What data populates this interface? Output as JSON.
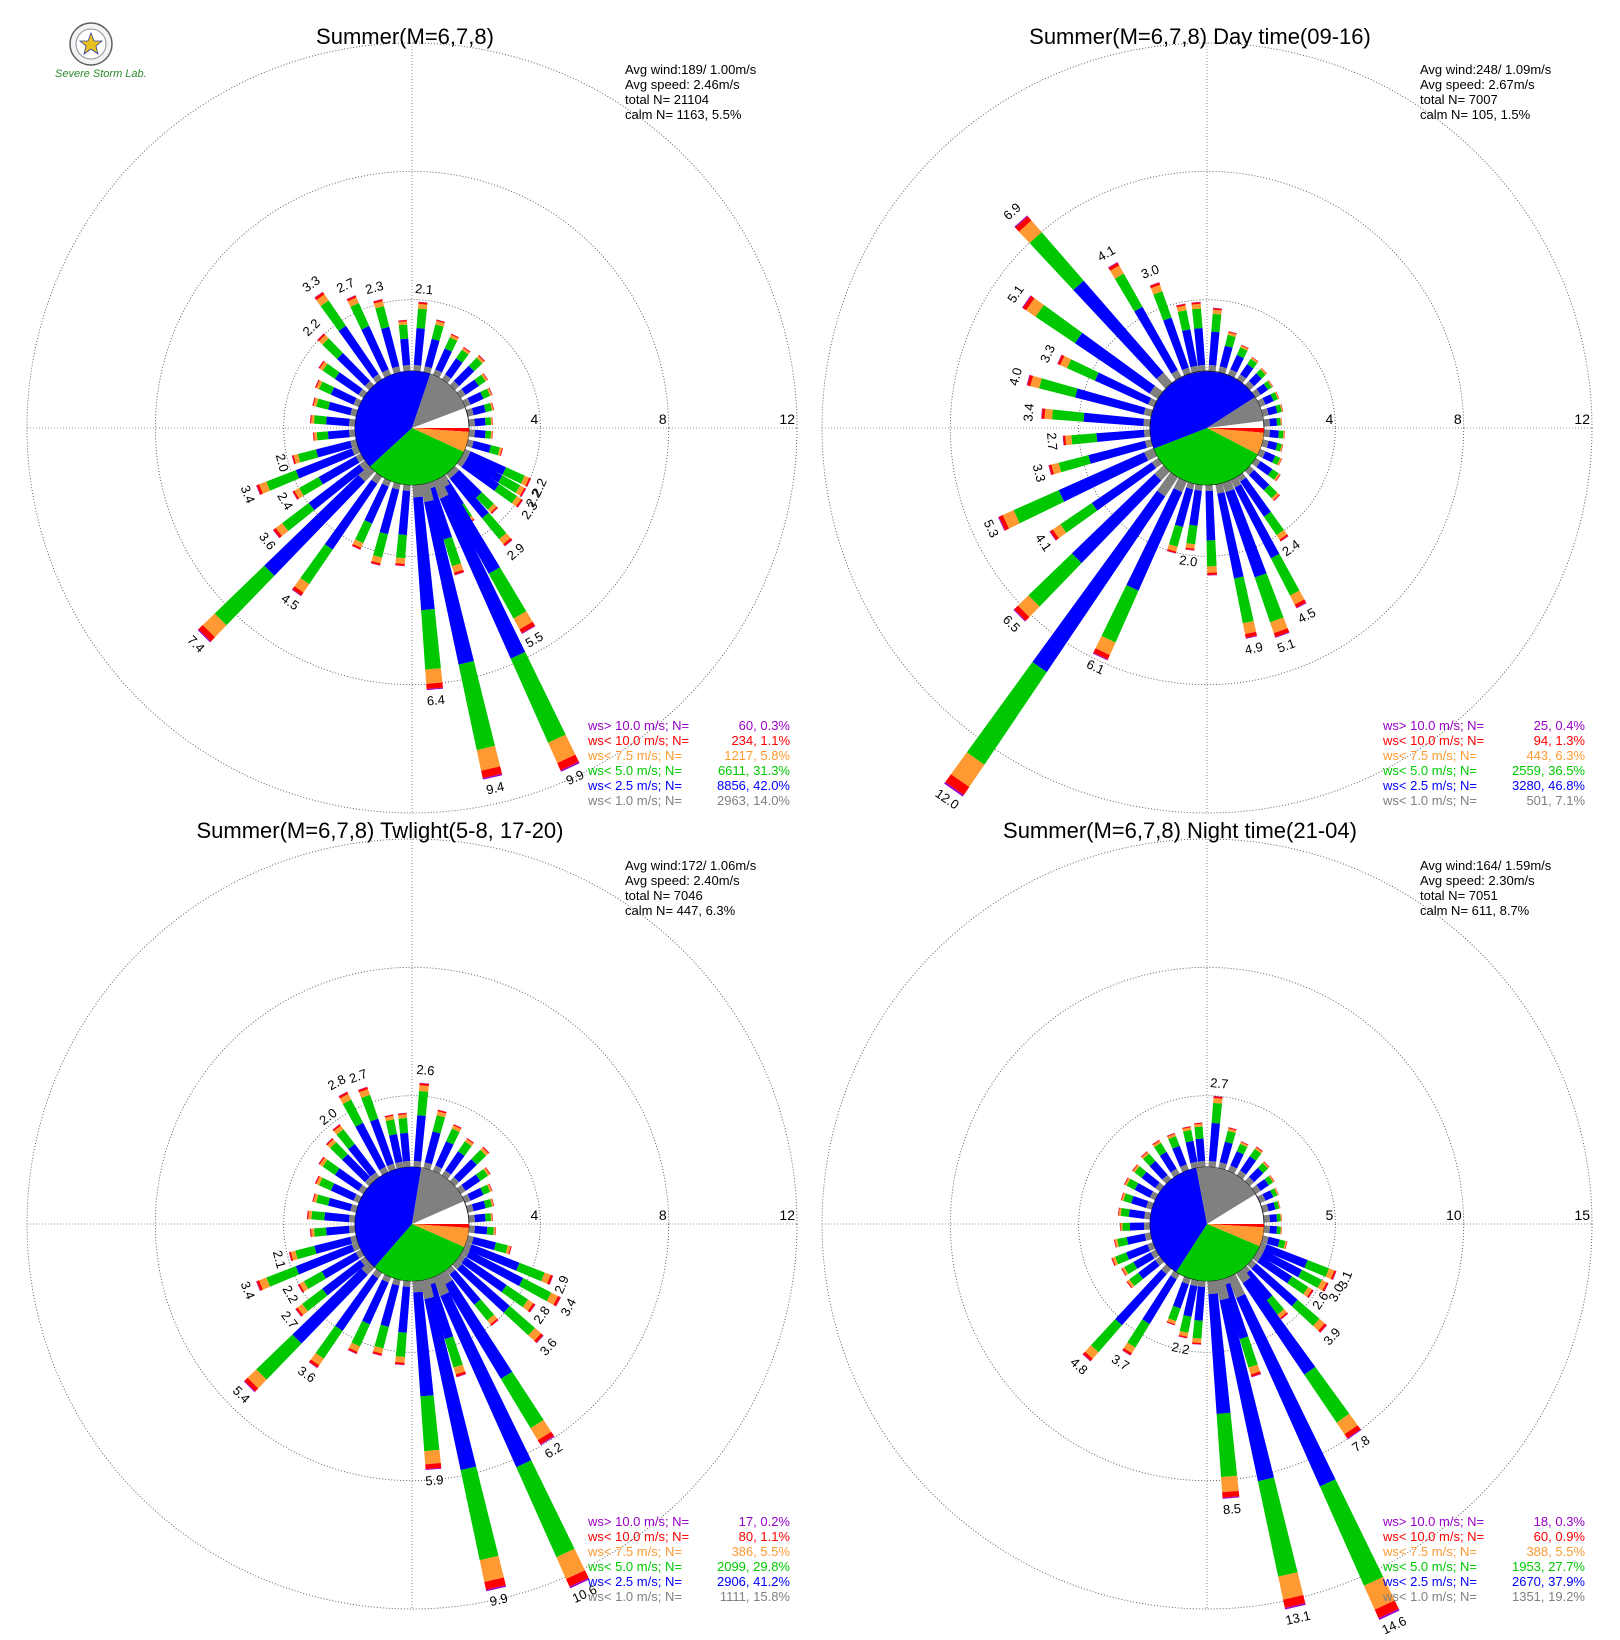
{
  "logo": {
    "caption": "Severe Storm Lab.",
    "badge_icon": "seal-emblem-icon"
  },
  "colors": {
    "gt10": "#9a00c8",
    "lt10": "#ff0000",
    "lt75": "#ff9a32",
    "lt5": "#00c800",
    "lt25": "#0000ff",
    "lt1": "#808080"
  },
  "chart_data": [
    {
      "type": "windrose",
      "title": "Summer(M=6,7,8)",
      "rings": [
        4,
        8,
        12
      ],
      "ring_labels": [
        "4",
        "8",
        "12"
      ],
      "stats": [
        "Avg wind:189/ 1.00m/s",
        "Avg speed: 2.46m/s",
        "total N=       21104",
        "calm N=   1163,   5.5%"
      ],
      "legend": [
        {
          "label": "ws> 10.0 m/s; N=",
          "value": "60,  0.3%",
          "color": "#9a00c8"
        },
        {
          "label": "ws< 10.0 m/s; N=",
          "value": "234,  1.1%",
          "color": "#ff0000"
        },
        {
          "label": "ws<  7.5 m/s; N=",
          "value": "1217,  5.8%",
          "color": "#ff9a32"
        },
        {
          "label": "ws<  5.0 m/s; N=",
          "value": "6611, 31.3%",
          "color": "#00c800"
        },
        {
          "label": "ws<  2.5 m/s; N=",
          "value": "8856, 42.0%",
          "color": "#0000ff"
        },
        {
          "label": "ws<  1.0 m/s; N=",
          "value": "2963, 14.0%",
          "color": "#808080"
        }
      ],
      "pie": [
        {
          "color": "#ff0000",
          "pct": 1.1
        },
        {
          "color": "#ff9a32",
          "pct": 5.8
        },
        {
          "color": "#00c800",
          "pct": 31.3
        },
        {
          "color": "#0000ff",
          "pct": 42.0
        },
        {
          "color": "#808080",
          "pct": 14.0
        }
      ],
      "bars": [
        {
          "dir": 5,
          "total": 2.1,
          "label": "2.1"
        },
        {
          "dir": 15,
          "total": 1.6
        },
        {
          "dir": 25,
          "total": 1.3
        },
        {
          "dir": 35,
          "total": 1.1
        },
        {
          "dir": 45,
          "total": 1.2
        },
        {
          "dir": 55,
          "total": 0.9
        },
        {
          "dir": 65,
          "total": 0.8
        },
        {
          "dir": 75,
          "total": 0.7
        },
        {
          "dir": 85,
          "total": 0.6
        },
        {
          "dir": 95,
          "total": 0.6
        },
        {
          "dir": 105,
          "total": 1.0
        },
        {
          "dir": 115,
          "total": 2.2,
          "label": "2.2"
        },
        {
          "dir": 120,
          "total": 2.2,
          "label": "2.2"
        },
        {
          "dir": 125,
          "total": 2.3,
          "label": "2.3"
        },
        {
          "dir": 135,
          "total": 1.8
        },
        {
          "dir": 140,
          "total": 2.9,
          "label": "2.9"
        },
        {
          "dir": 148,
          "total": 1.6
        },
        {
          "dir": 150,
          "total": 5.5,
          "label": "5.5"
        },
        {
          "dir": 155,
          "total": 9.9,
          "label": "9.9"
        },
        {
          "dir": 162,
          "total": 3.0
        },
        {
          "dir": 167,
          "total": 9.4,
          "label": "9.4"
        },
        {
          "dir": 175,
          "total": 6.4,
          "label": "6.4"
        },
        {
          "dir": 185,
          "total": 2.5
        },
        {
          "dir": 195,
          "total": 2.6
        },
        {
          "dir": 205,
          "total": 2.3
        },
        {
          "dir": 215,
          "total": 4.5,
          "label": "4.5"
        },
        {
          "dir": 225,
          "total": 7.4,
          "label": "7.4"
        },
        {
          "dir": 232,
          "total": 3.6,
          "label": "3.6"
        },
        {
          "dir": 240,
          "total": 2.4,
          "label": "2.4"
        },
        {
          "dir": 248,
          "total": 3.4,
          "label": "3.4"
        },
        {
          "dir": 255,
          "total": 2.0,
          "label": "2.0"
        },
        {
          "dir": 265,
          "total": 1.2
        },
        {
          "dir": 275,
          "total": 1.3
        },
        {
          "dir": 285,
          "total": 1.3
        },
        {
          "dir": 295,
          "total": 1.4
        },
        {
          "dir": 305,
          "total": 1.6
        },
        {
          "dir": 315,
          "total": 2.2,
          "label": "2.2"
        },
        {
          "dir": 325,
          "total": 3.3,
          "label": "3.3"
        },
        {
          "dir": 335,
          "total": 2.7,
          "label": "2.7"
        },
        {
          "dir": 345,
          "total": 2.3,
          "label": "2.3"
        },
        {
          "dir": 355,
          "total": 1.5
        }
      ]
    },
    {
      "type": "windrose",
      "title": "Summer(M=6,7,8) Day time(09-16)",
      "rings": [
        4,
        8,
        12
      ],
      "ring_labels": [
        "4",
        "8",
        "12"
      ],
      "stats": [
        "Avg wind:248/ 1.09m/s",
        "Avg speed: 2.67m/s",
        "total N=       7007",
        "calm N=    105,   1.5%"
      ],
      "legend": [
        {
          "label": "ws> 10.0 m/s; N=",
          "value": "25,  0.4%",
          "color": "#9a00c8"
        },
        {
          "label": "ws< 10.0 m/s; N=",
          "value": "94,  1.3%",
          "color": "#ff0000"
        },
        {
          "label": "ws<  7.5 m/s; N=",
          "value": "443,  6.3%",
          "color": "#ff9a32"
        },
        {
          "label": "ws<  5.0 m/s; N=",
          "value": "2559, 36.5%",
          "color": "#00c800"
        },
        {
          "label": "ws<  2.5 m/s; N=",
          "value": "3280, 46.8%",
          "color": "#0000ff"
        },
        {
          "label": "ws<  1.0 m/s; N=",
          "value": "501,  7.1%",
          "color": "#808080"
        }
      ],
      "pie": [
        {
          "color": "#ff0000",
          "pct": 1.3
        },
        {
          "color": "#ff9a32",
          "pct": 6.3
        },
        {
          "color": "#00c800",
          "pct": 36.5
        },
        {
          "color": "#0000ff",
          "pct": 46.8
        },
        {
          "color": "#808080",
          "pct": 7.1
        }
      ],
      "bars": [
        {
          "dir": 5,
          "total": 1.9
        },
        {
          "dir": 15,
          "total": 1.2
        },
        {
          "dir": 25,
          "total": 0.9
        },
        {
          "dir": 35,
          "total": 0.7
        },
        {
          "dir": 45,
          "total": 0.6
        },
        {
          "dir": 55,
          "total": 0.5
        },
        {
          "dir": 65,
          "total": 0.5
        },
        {
          "dir": 75,
          "total": 0.5
        },
        {
          "dir": 85,
          "total": 0.4
        },
        {
          "dir": 95,
          "total": 0.5
        },
        {
          "dir": 105,
          "total": 0.5
        },
        {
          "dir": 115,
          "total": 0.6
        },
        {
          "dir": 125,
          "total": 0.8
        },
        {
          "dir": 135,
          "total": 1.2
        },
        {
          "dir": 145,
          "total": 2.4,
          "label": "2.4"
        },
        {
          "dir": 152,
          "total": 4.5,
          "label": "4.5"
        },
        {
          "dir": 160,
          "total": 5.1,
          "label": "5.1"
        },
        {
          "dir": 168,
          "total": 4.9,
          "label": "4.9"
        },
        {
          "dir": 178,
          "total": 2.8
        },
        {
          "dir": 188,
          "total": 2.0,
          "label": "2.0"
        },
        {
          "dir": 196,
          "total": 2.2
        },
        {
          "dir": 205,
          "total": 6.1,
          "label": "6.1"
        },
        {
          "dir": 215,
          "total": 12.0,
          "label": "12.0"
        },
        {
          "dir": 225,
          "total": 6.5,
          "label": "6.5"
        },
        {
          "dir": 235,
          "total": 4.1,
          "label": "4.1"
        },
        {
          "dir": 245,
          "total": 5.3,
          "label": "5.3"
        },
        {
          "dir": 255,
          "total": 3.3,
          "label": "3.3"
        },
        {
          "dir": 265,
          "total": 2.7,
          "label": "2.7"
        },
        {
          "dir": 275,
          "total": 3.4,
          "label": "3.4"
        },
        {
          "dir": 285,
          "total": 4.0,
          "label": "4.0"
        },
        {
          "dir": 295,
          "total": 3.3,
          "label": "3.3"
        },
        {
          "dir": 305,
          "total": 5.1,
          "label": "5.1"
        },
        {
          "dir": 318,
          "total": 6.9,
          "label": "6.9"
        },
        {
          "dir": 330,
          "total": 4.1,
          "label": "4.1"
        },
        {
          "dir": 340,
          "total": 3.0,
          "label": "3.0"
        },
        {
          "dir": 348,
          "total": 2.1
        },
        {
          "dir": 355,
          "total": 2.1
        }
      ]
    },
    {
      "type": "windrose",
      "title": "Summer(M=6,7,8) Twlight(5-8, 17-20)",
      "rings": [
        4,
        8,
        12
      ],
      "ring_labels": [
        "4",
        "8",
        "12"
      ],
      "stats": [
        "Avg wind:172/ 1.06m/s",
        "Avg speed: 2.40m/s",
        "total N=       7046",
        "calm N=    447,   6.3%"
      ],
      "legend": [
        {
          "label": "ws> 10.0 m/s; N=",
          "value": "17,  0.2%",
          "color": "#9a00c8"
        },
        {
          "label": "ws< 10.0 m/s; N=",
          "value": "80,  1.1%",
          "color": "#ff0000"
        },
        {
          "label": "ws<  7.5 m/s; N=",
          "value": "386,  5.5%",
          "color": "#ff9a32"
        },
        {
          "label": "ws<  5.0 m/s; N=",
          "value": "2099, 29.8%",
          "color": "#00c800"
        },
        {
          "label": "ws<  2.5 m/s; N=",
          "value": "2906, 41.2%",
          "color": "#0000ff"
        },
        {
          "label": "ws<  1.0 m/s; N=",
          "value": "1111, 15.8%",
          "color": "#808080"
        }
      ],
      "pie": [
        {
          "color": "#ff0000",
          "pct": 1.1
        },
        {
          "color": "#ff9a32",
          "pct": 5.5
        },
        {
          "color": "#00c800",
          "pct": 29.8
        },
        {
          "color": "#0000ff",
          "pct": 41.2
        },
        {
          "color": "#808080",
          "pct": 15.8
        }
      ],
      "bars": [
        {
          "dir": 5,
          "total": 2.6,
          "label": "2.6"
        },
        {
          "dir": 15,
          "total": 1.8
        },
        {
          "dir": 25,
          "total": 1.5
        },
        {
          "dir": 35,
          "total": 1.3
        },
        {
          "dir": 45,
          "total": 1.4
        },
        {
          "dir": 55,
          "total": 1.0
        },
        {
          "dir": 65,
          "total": 0.8
        },
        {
          "dir": 75,
          "total": 0.7
        },
        {
          "dir": 85,
          "total": 0.6
        },
        {
          "dir": 95,
          "total": 0.7
        },
        {
          "dir": 105,
          "total": 1.3
        },
        {
          "dir": 112,
          "total": 2.9,
          "label": "2.9"
        },
        {
          "dir": 118,
          "total": 3.4,
          "label": "3.4"
        },
        {
          "dir": 125,
          "total": 2.8,
          "label": "2.8"
        },
        {
          "dir": 132,
          "total": 3.6,
          "label": "3.6"
        },
        {
          "dir": 140,
          "total": 2.2
        },
        {
          "dir": 148,
          "total": 6.2,
          "label": "6.2"
        },
        {
          "dir": 155,
          "total": 10.6,
          "label": "10.6"
        },
        {
          "dir": 162,
          "total": 3.2
        },
        {
          "dir": 167,
          "total": 9.9,
          "label": "9.9"
        },
        {
          "dir": 175,
          "total": 5.9,
          "label": "5.9"
        },
        {
          "dir": 185,
          "total": 2.6
        },
        {
          "dir": 195,
          "total": 2.4
        },
        {
          "dir": 205,
          "total": 2.6
        },
        {
          "dir": 215,
          "total": 3.6,
          "label": "3.6"
        },
        {
          "dir": 225,
          "total": 5.4,
          "label": "5.4"
        },
        {
          "dir": 232,
          "total": 2.7,
          "label": "2.7"
        },
        {
          "dir": 240,
          "total": 2.2,
          "label": "2.2"
        },
        {
          "dir": 248,
          "total": 3.4,
          "label": "3.4"
        },
        {
          "dir": 255,
          "total": 2.1,
          "label": "2.1"
        },
        {
          "dir": 265,
          "total": 1.3
        },
        {
          "dir": 275,
          "total": 1.4
        },
        {
          "dir": 285,
          "total": 1.3
        },
        {
          "dir": 295,
          "total": 1.4
        },
        {
          "dir": 305,
          "total": 1.6
        },
        {
          "dir": 315,
          "total": 1.8
        },
        {
          "dir": 322,
          "total": 2.0,
          "label": "2.0"
        },
        {
          "dir": 332,
          "total": 2.8,
          "label": "2.8"
        },
        {
          "dir": 340,
          "total": 2.7,
          "label": "2.7"
        },
        {
          "dir": 348,
          "total": 1.6
        },
        {
          "dir": 355,
          "total": 1.6
        }
      ]
    },
    {
      "type": "windrose",
      "title": "Summer(M=6,7,8) Night time(21-04)",
      "rings": [
        5,
        10,
        15
      ],
      "ring_labels": [
        "5",
        "10",
        "15"
      ],
      "stats": [
        "Avg wind:164/ 1.59m/s",
        "Avg speed: 2.30m/s",
        "total N=       7051",
        "calm N=    611,   8.7%"
      ],
      "legend": [
        {
          "label": "ws> 10.0 m/s; N=",
          "value": "18,  0.3%",
          "color": "#9a00c8"
        },
        {
          "label": "ws< 10.0 m/s; N=",
          "value": "60,  0.9%",
          "color": "#ff0000"
        },
        {
          "label": "ws<  7.5 m/s; N=",
          "value": "388,  5.5%",
          "color": "#ff9a32"
        },
        {
          "label": "ws<  5.0 m/s; N=",
          "value": "1953, 27.7%",
          "color": "#00c800"
        },
        {
          "label": "ws<  2.5 m/s; N=",
          "value": "2670, 37.9%",
          "color": "#0000ff"
        },
        {
          "label": "ws<  1.0 m/s; N=",
          "value": "1351, 19.2%",
          "color": "#808080"
        }
      ],
      "pie": [
        {
          "color": "#ff0000",
          "pct": 0.9
        },
        {
          "color": "#ff9a32",
          "pct": 5.5
        },
        {
          "color": "#00c800",
          "pct": 27.7
        },
        {
          "color": "#0000ff",
          "pct": 37.9
        },
        {
          "color": "#808080",
          "pct": 19.2
        }
      ],
      "bars": [
        {
          "dir": 5,
          "total": 2.7,
          "label": "2.7"
        },
        {
          "dir": 15,
          "total": 1.5
        },
        {
          "dir": 25,
          "total": 1.1
        },
        {
          "dir": 35,
          "total": 1.2
        },
        {
          "dir": 45,
          "total": 0.9
        },
        {
          "dir": 55,
          "total": 0.7
        },
        {
          "dir": 65,
          "total": 0.6
        },
        {
          "dir": 75,
          "total": 0.5
        },
        {
          "dir": 85,
          "total": 0.5
        },
        {
          "dir": 95,
          "total": 0.5
        },
        {
          "dir": 105,
          "total": 0.8
        },
        {
          "dir": 112,
          "total": 3.1,
          "label": "3.1"
        },
        {
          "dir": 118,
          "total": 3.0,
          "label": "3.0"
        },
        {
          "dir": 124,
          "total": 2.6,
          "label": "2.6"
        },
        {
          "dir": 132,
          "total": 3.9,
          "label": "3.9"
        },
        {
          "dir": 140,
          "total": 2.4
        },
        {
          "dir": 145,
          "total": 7.8,
          "label": "7.8"
        },
        {
          "dir": 155,
          "total": 14.6,
          "label": "14.6"
        },
        {
          "dir": 162,
          "total": 4.0
        },
        {
          "dir": 167,
          "total": 13.1,
          "label": "13.1"
        },
        {
          "dir": 175,
          "total": 8.5,
          "label": "8.5"
        },
        {
          "dir": 185,
          "total": 2.4
        },
        {
          "dir": 192,
          "total": 2.2,
          "label": "2.2"
        },
        {
          "dir": 200,
          "total": 1.8
        },
        {
          "dir": 212,
          "total": 3.7,
          "label": "3.7"
        },
        {
          "dir": 222,
          "total": 4.8,
          "label": "4.8"
        },
        {
          "dir": 232,
          "total": 1.5
        },
        {
          "dir": 240,
          "total": 1.4
        },
        {
          "dir": 248,
          "total": 1.6
        },
        {
          "dir": 258,
          "total": 1.3
        },
        {
          "dir": 268,
          "total": 1.0
        },
        {
          "dir": 278,
          "total": 1.1
        },
        {
          "dir": 288,
          "total": 1.1
        },
        {
          "dir": 298,
          "total": 1.2
        },
        {
          "dir": 308,
          "total": 1.2
        },
        {
          "dir": 318,
          "total": 1.3
        },
        {
          "dir": 328,
          "total": 1.4
        },
        {
          "dir": 338,
          "total": 1.4
        },
        {
          "dir": 348,
          "total": 1.5
        },
        {
          "dir": 355,
          "total": 1.6
        }
      ]
    }
  ]
}
